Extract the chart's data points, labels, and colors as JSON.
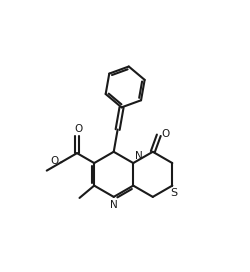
{
  "bg_color": "#ffffff",
  "lc": "#1a1a1a",
  "lw": 1.5,
  "figsize": [
    2.5,
    2.72
  ],
  "dpi": 100,
  "xlim": [
    0.0,
    10.0
  ],
  "ylim": [
    0.5,
    12.5
  ]
}
